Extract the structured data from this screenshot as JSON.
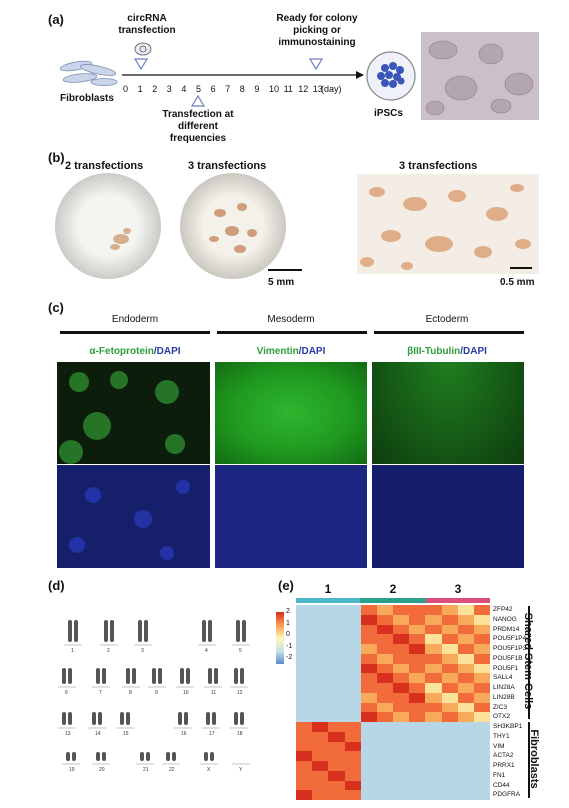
{
  "panels": {
    "a": {
      "label": "(a)",
      "circrna": "circRNA\ntransfection",
      "ready": "Ready for colony\npicking or\nimmunostaining",
      "fibroblasts": "Fibroblasts",
      "transfection_freq": "Transfection at\ndifferent\nfrequencies",
      "timeline_ticks": [
        "0",
        "1",
        "2",
        "3",
        "4",
        "5",
        "6",
        "7",
        "8",
        "9",
        "10",
        "11",
        "12",
        "13"
      ],
      "day_unit": "(day)",
      "ipscs": "iPSCs"
    },
    "b": {
      "label": "(b)",
      "dish1": "2 transfections",
      "dish2": "3 transfections",
      "photo": "3 transfections",
      "scale1": "5 mm",
      "scale2": "0.5 mm"
    },
    "c": {
      "label": "(c)",
      "germ_layers": [
        "Endoderm",
        "Mesoderm",
        "Ectoderm"
      ],
      "stains": [
        {
          "marker": "α-Fetoprotein",
          "dapi": "/DAPI"
        },
        {
          "marker": "Vimentin",
          "dapi": "/DAPI"
        },
        {
          "marker": "βIII-Tubulin",
          "dapi": "/DAPI"
        }
      ],
      "colors": {
        "green": "#2e9e3a",
        "blue": "#2a3aa0"
      }
    },
    "d": {
      "label": "(d)",
      "row1": [
        "1",
        "2",
        "3",
        "4",
        "5"
      ],
      "row2": [
        "6",
        "7",
        "8",
        "9",
        "10",
        "11",
        "12"
      ],
      "row3": [
        "13",
        "14",
        "15",
        "16",
        "17",
        "18"
      ],
      "row4": [
        "19",
        "20",
        "21",
        "22",
        "X",
        "Y"
      ]
    },
    "e": {
      "label": "(e)",
      "groups": [
        "1",
        "2",
        "3"
      ],
      "scale_ticks": [
        "2",
        "1",
        "0",
        "-1",
        "-2"
      ],
      "genes_stem": [
        "ZFP42",
        "NANOG",
        "PRDM14",
        "POU5F1P4",
        "POU5F1P3",
        "POU5F1B",
        "POU5F1",
        "SALL4",
        "LIN28A",
        "LIN28B",
        "ZIC3",
        "OTX2"
      ],
      "genes_fib": [
        "SH3KBP1",
        "THY1",
        "VIM",
        "ACTA2",
        "PRRX1",
        "FN1",
        "CD44",
        "PDGFRA"
      ],
      "cluster_stem": "Shared Stem Cells",
      "cluster_fib": "Fibroblasts",
      "group_colors": [
        "#4fb8c8",
        "#2aa08a",
        "#d9507a"
      ]
    }
  }
}
